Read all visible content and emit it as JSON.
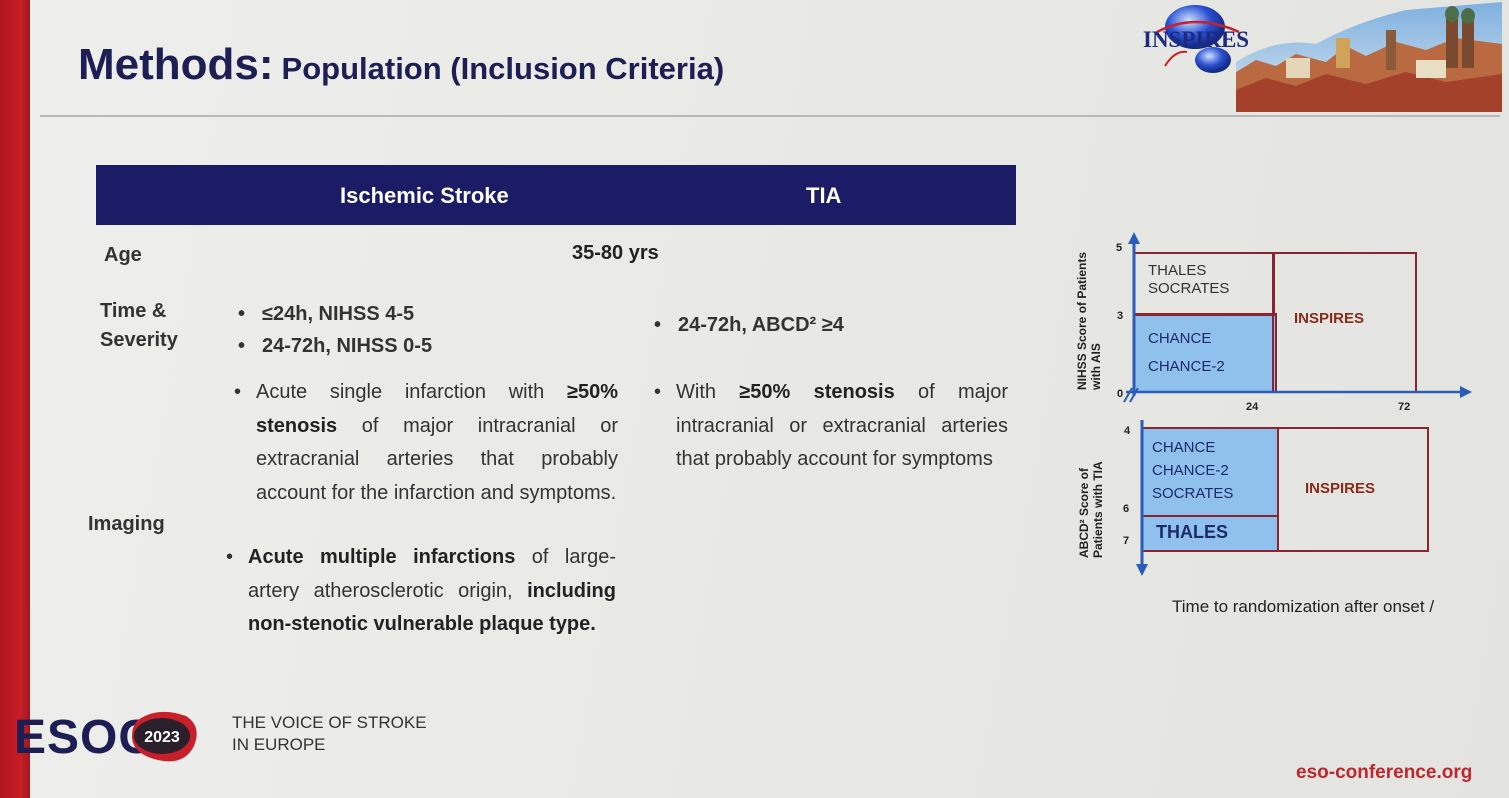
{
  "slide": {
    "title_main": "Methods:",
    "title_sub": "Population (Inclusion Criteria)"
  },
  "table": {
    "col_ischemic": "Ischemic Stroke",
    "col_tia": "TIA",
    "row_age": "Age",
    "age_value": "35-80 yrs",
    "row_time_line1": "Time &",
    "row_time_line2": "Severity",
    "time_stroke": [
      "≤24h, NIHSS 4-5",
      "24-72h, NIHSS 0-5"
    ],
    "time_tia": "24-72h, ABCD² ≥4",
    "row_imaging": "Imaging",
    "imaging_stroke_1_pre": "Acute single infarction with",
    "imaging_stroke_1_bold1": "≥50%",
    "imaging_stroke_1_bold2": "stenosis",
    "imaging_stroke_1_rest": "of major intracranial or extracranial arteries that probably account for the infarction and symptoms.",
    "imaging_stroke_2_bold": "Acute multiple infarctions",
    "imaging_stroke_2_mid": "of large-artery atherosclerotic origin,",
    "imaging_stroke_2_bold2": "including non-stenotic vulnerable plaque type.",
    "imaging_tia_pre": "With",
    "imaging_tia_bold": "≥50% stenosis",
    "imaging_tia_rest": "of major intracranial or extracranial arteries that probably account for symptoms"
  },
  "diagram": {
    "top_ylabel_1": "NIHSS Score of Patients",
    "top_ylabel_2": "with AIS",
    "bottom_ylabel_1": "ABCD² Score of",
    "bottom_ylabel_2": "Patients with TIA",
    "top_ticks": [
      "5",
      "3",
      "0"
    ],
    "bottom_ticks": [
      "4",
      "6",
      "7"
    ],
    "x_ticks": [
      "24",
      "72"
    ],
    "thales_line1": "THALES",
    "socrates_line2": "SOCRATES",
    "chance": "CHANCE",
    "chance2": "CHANCE-2",
    "inspires_top": "INSPIRES",
    "bottom_chance": "CHANCE",
    "bottom_chance2": "CHANCE-2",
    "bottom_socrates": "SOCRATES",
    "bottom_thales": "THALES",
    "inspires_bottom": "INSPIRES",
    "xlabel": "Time to randomization after onset /"
  },
  "footer": {
    "esoc": "ESOC",
    "year": "2023",
    "voice_line1": "THE VOICE OF STROKE",
    "voice_line2": "IN EUROPE",
    "url": "eso-conference.org"
  },
  "logo": {
    "text": "INSPIRES"
  },
  "colors": {
    "navy": "#1b1b66",
    "blue_box": "#8fc1ec",
    "box_border": "#8a2332",
    "accent_red": "#c0262d"
  }
}
